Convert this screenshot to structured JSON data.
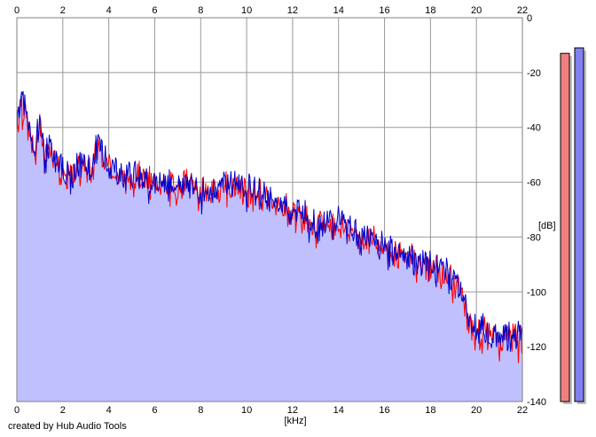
{
  "credit": "created by Hub Audio Tools",
  "colors": {
    "channel_1": "#ff0000",
    "channel_2": "#0000cc",
    "fill": "#c0c0ff",
    "grid": "#999999",
    "meter_1": "#f08080",
    "meter_2": "#8080f0"
  },
  "chart_data": {
    "type": "line",
    "x_unit": "[kHz]",
    "y_unit": "[dB]",
    "xlim": [
      0,
      22
    ],
    "ylim": [
      -140,
      0
    ],
    "x_ticks": [
      "0",
      "2",
      "4",
      "6",
      "8",
      "10",
      "12",
      "14",
      "16",
      "18",
      "20",
      "22"
    ],
    "y_ticks": [
      "0",
      "-20",
      "-40",
      "-60",
      "-80",
      "-100",
      "-120",
      "-140"
    ],
    "grid": true,
    "series": [
      {
        "color": "#ff0000",
        "x": [
          0,
          0.2,
          0.4,
          0.6,
          0.8,
          1.0,
          1.2,
          1.5,
          1.8,
          2.0,
          2.3,
          2.6,
          3.0,
          3.3,
          3.5,
          3.8,
          4.0,
          4.3,
          4.6,
          5.0,
          5.5,
          6.0,
          6.5,
          7.0,
          7.5,
          8.0,
          8.5,
          9.0,
          9.5,
          10.0,
          10.5,
          11.0,
          11.5,
          12.0,
          12.5,
          13.0,
          13.5,
          14.0,
          14.5,
          15.0,
          15.5,
          16.0,
          16.5,
          17.0,
          17.5,
          18.0,
          18.5,
          19.0,
          19.3,
          19.5,
          19.7,
          20.0,
          20.5,
          21.0,
          21.5,
          22.0
        ],
        "y": [
          -37,
          -28,
          -36,
          -44,
          -48,
          -35,
          -50,
          -46,
          -52,
          -55,
          -58,
          -54,
          -52,
          -55,
          -44,
          -50,
          -53,
          -55,
          -58,
          -56,
          -57,
          -59,
          -60,
          -61,
          -58,
          -62,
          -63,
          -59,
          -60,
          -62,
          -63,
          -64,
          -67,
          -69,
          -71,
          -75,
          -74,
          -74,
          -76,
          -79,
          -80,
          -82,
          -84,
          -85,
          -88,
          -89,
          -91,
          -94,
          -97,
          -103,
          -111,
          -112,
          -114,
          -116,
          -114,
          -115
        ]
      },
      {
        "color": "#0000cc",
        "x": [
          0,
          0.2,
          0.4,
          0.6,
          0.8,
          1.0,
          1.2,
          1.5,
          1.8,
          2.0,
          2.3,
          2.6,
          3.0,
          3.3,
          3.5,
          3.8,
          4.0,
          4.3,
          4.6,
          5.0,
          5.5,
          6.0,
          6.5,
          7.0,
          7.5,
          8.0,
          8.5,
          9.0,
          9.5,
          10.0,
          10.5,
          11.0,
          11.5,
          12.0,
          12.5,
          13.0,
          13.5,
          14.0,
          14.5,
          15.0,
          15.5,
          16.0,
          16.5,
          17.0,
          17.5,
          18.0,
          18.5,
          19.0,
          19.3,
          19.5,
          19.7,
          20.0,
          20.5,
          21.0,
          21.5,
          22.0
        ],
        "y": [
          -35,
          -27,
          -33,
          -42,
          -46,
          -33,
          -49,
          -45,
          -51,
          -54,
          -56,
          -53,
          -51,
          -54,
          -42,
          -49,
          -52,
          -53,
          -57,
          -55,
          -56,
          -58,
          -59,
          -60,
          -57,
          -61,
          -62,
          -58,
          -59,
          -61,
          -62,
          -64,
          -66,
          -68,
          -70,
          -74,
          -73,
          -72,
          -75,
          -78,
          -79,
          -81,
          -83,
          -85,
          -87,
          -88,
          -90,
          -93,
          -96,
          -102,
          -110,
          -111,
          -113,
          -115,
          -113,
          -114
        ]
      }
    ]
  },
  "meters": [
    {
      "color": "#f08080",
      "level_db": -13
    },
    {
      "color": "#8080f0",
      "level_db": -11
    }
  ]
}
